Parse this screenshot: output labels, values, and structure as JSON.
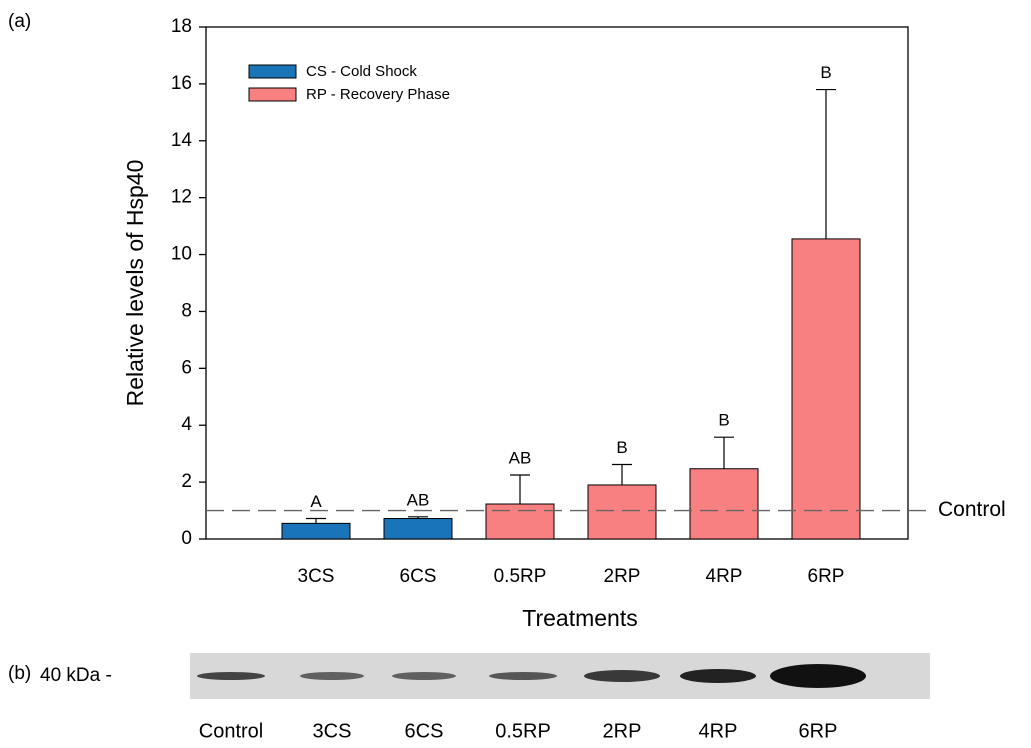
{
  "chart_data": {
    "type": "bar",
    "panel_label": "(a)",
    "x_label": "Treatments",
    "y_label": "Relative levels of Hsp40",
    "categories": [
      "3CS",
      "6CS",
      "0.5RP",
      "2RP",
      "4RP",
      "6RP"
    ],
    "series": [
      {
        "name": "CS - Cold Shock",
        "color": "#1a74b8",
        "values": [
          0.55,
          0.72,
          null,
          null,
          null,
          null
        ],
        "errors": [
          0.17,
          0.06,
          null,
          null,
          null,
          null
        ],
        "letters": [
          "A",
          "AB",
          null,
          null,
          null,
          null
        ]
      },
      {
        "name": "RP - Recovery Phase",
        "color": "#f88080",
        "values": [
          null,
          null,
          1.23,
          1.9,
          2.47,
          10.55
        ],
        "errors": [
          null,
          null,
          1.02,
          0.72,
          1.11,
          5.25
        ],
        "letters": [
          null,
          null,
          "AB",
          "B",
          "B",
          "B"
        ]
      }
    ],
    "reference_line": {
      "value": 1,
      "label": "Control"
    },
    "ylim": [
      0,
      18
    ],
    "yticks": [
      0,
      2,
      4,
      6,
      8,
      10,
      12,
      14,
      16,
      18
    ],
    "legend": "upper left"
  },
  "blot": {
    "panel_label": "(b)",
    "marker": "40 kDa -",
    "lanes": [
      "Control",
      "3CS",
      "6CS",
      "0.5RP",
      "2RP",
      "4RP",
      "6RP"
    ]
  }
}
